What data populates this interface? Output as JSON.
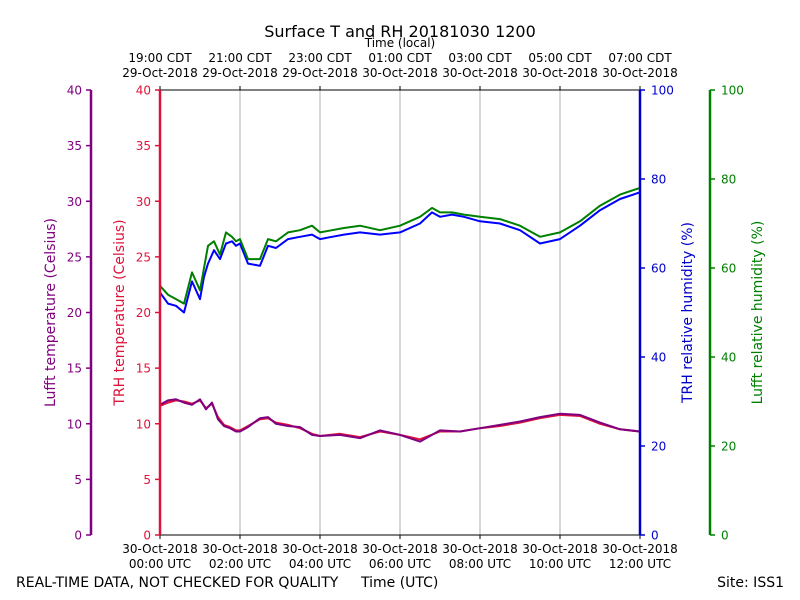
{
  "chart_data": {
    "type": "line",
    "title": "Surface T and RH 20181030 1200",
    "x_top_label": "Time (local)",
    "x_bottom_label": "Time (UTC)",
    "x_range_hours": [
      0,
      12
    ],
    "x_ticks": [
      {
        "h": 0,
        "utc": [
          "30-Oct-2018",
          "00:00 UTC"
        ],
        "local": [
          "19:00 CDT",
          "29-Oct-2018"
        ]
      },
      {
        "h": 2,
        "utc": [
          "30-Oct-2018",
          "02:00 UTC"
        ],
        "local": [
          "21:00 CDT",
          "29-Oct-2018"
        ]
      },
      {
        "h": 4,
        "utc": [
          "30-Oct-2018",
          "04:00 UTC"
        ],
        "local": [
          "23:00 CDT",
          "29-Oct-2018"
        ]
      },
      {
        "h": 6,
        "utc": [
          "30-Oct-2018",
          "06:00 UTC"
        ],
        "local": [
          "01:00 CDT",
          "30-Oct-2018"
        ]
      },
      {
        "h": 8,
        "utc": [
          "30-Oct-2018",
          "08:00 UTC"
        ],
        "local": [
          "03:00 CDT",
          "30-Oct-2018"
        ]
      },
      {
        "h": 10,
        "utc": [
          "30-Oct-2018",
          "10:00 UTC"
        ],
        "local": [
          "05:00 CDT",
          "30-Oct-2018"
        ]
      },
      {
        "h": 12,
        "utc": [
          "30-Oct-2018",
          "12:00 UTC"
        ],
        "local": [
          "07:00 CDT",
          "30-Oct-2018"
        ]
      }
    ],
    "axes": {
      "lufft_temp": {
        "label": "Lufft temperature (Celsius)",
        "ylim": [
          0,
          40
        ],
        "ticks": [
          0,
          5,
          10,
          15,
          20,
          25,
          30,
          35,
          40
        ],
        "color": "#800080"
      },
      "trh_temp": {
        "label": "TRH temperature (Celsius)",
        "ylim": [
          0,
          40
        ],
        "ticks": [
          0,
          5,
          10,
          15,
          20,
          25,
          30,
          35,
          40
        ],
        "color": "#dc143c"
      },
      "trh_rh": {
        "label": "TRH relative humidity (%)",
        "ylim": [
          0,
          100
        ],
        "ticks": [
          0,
          20,
          40,
          60,
          80,
          100
        ],
        "color": "#0000cd"
      },
      "lufft_rh": {
        "label": "Lufft relative humidity (%)",
        "ylim": [
          0,
          100
        ],
        "ticks": [
          0,
          20,
          40,
          60,
          80,
          100
        ],
        "color": "#008000"
      }
    },
    "grid": "vertical",
    "series": [
      {
        "key": "trh_temp",
        "color": "#dc143c",
        "x": [
          0,
          0.2,
          0.4,
          0.6,
          0.8,
          1.0,
          1.15,
          1.3,
          1.45,
          1.6,
          1.75,
          1.9,
          2.0,
          2.2,
          2.5,
          2.7,
          2.9,
          3.2,
          3.5,
          3.8,
          4.0,
          4.5,
          5.0,
          5.5,
          6.0,
          6.5,
          7.0,
          7.5,
          8.0,
          8.5,
          9.0,
          9.5,
          10.0,
          10.5,
          11.0,
          11.5,
          12.0
        ],
        "values": [
          11.6,
          11.9,
          12.1,
          12.0,
          11.8,
          12.1,
          11.4,
          11.8,
          10.6,
          9.9,
          9.7,
          9.4,
          9.4,
          9.8,
          10.4,
          10.5,
          10.1,
          9.9,
          9.6,
          9.1,
          8.9,
          9.1,
          8.8,
          9.3,
          9.0,
          8.6,
          9.3,
          9.3,
          9.6,
          9.8,
          10.1,
          10.5,
          10.8,
          10.7,
          10.0,
          9.5,
          9.3
        ]
      },
      {
        "key": "lufft_temp",
        "color": "#800080",
        "x": [
          0,
          0.2,
          0.4,
          0.6,
          0.8,
          1.0,
          1.15,
          1.3,
          1.45,
          1.6,
          1.75,
          1.9,
          2.0,
          2.2,
          2.5,
          2.7,
          2.9,
          3.2,
          3.5,
          3.8,
          4.0,
          4.5,
          5.0,
          5.5,
          6.0,
          6.5,
          7.0,
          7.5,
          8.0,
          8.5,
          9.0,
          9.5,
          10.0,
          10.5,
          11.0,
          11.5,
          12.0
        ],
        "values": [
          11.7,
          12.1,
          12.2,
          11.9,
          11.7,
          12.2,
          11.3,
          11.9,
          10.4,
          9.8,
          9.6,
          9.3,
          9.3,
          9.7,
          10.5,
          10.6,
          10.0,
          9.8,
          9.7,
          9.0,
          8.9,
          9.0,
          8.7,
          9.4,
          9.0,
          8.4,
          9.4,
          9.3,
          9.6,
          9.9,
          10.2,
          10.6,
          10.9,
          10.8,
          10.1,
          9.5,
          9.3
        ]
      },
      {
        "key": "trh_rh",
        "color": "#0000ff",
        "x": [
          0,
          0.2,
          0.4,
          0.6,
          0.8,
          1.0,
          1.1,
          1.2,
          1.35,
          1.5,
          1.65,
          1.8,
          1.9,
          2.0,
          2.2,
          2.5,
          2.7,
          2.9,
          3.2,
          3.5,
          3.8,
          4.0,
          4.3,
          4.6,
          5.0,
          5.5,
          6.0,
          6.5,
          6.8,
          7.0,
          7.3,
          7.6,
          8.0,
          8.5,
          9.0,
          9.5,
          10.0,
          10.5,
          11.0,
          11.5,
          12.0
        ],
        "values": [
          54.5,
          52.0,
          51.5,
          50.0,
          57.0,
          53.0,
          58.0,
          61.0,
          64.0,
          62.0,
          65.5,
          66.0,
          65.0,
          65.5,
          61.0,
          60.5,
          65.0,
          64.5,
          66.5,
          67.0,
          67.5,
          66.5,
          67.0,
          67.5,
          68.0,
          67.5,
          68.0,
          70.0,
          72.5,
          71.5,
          72.0,
          71.5,
          70.5,
          70.0,
          68.5,
          65.5,
          66.5,
          69.5,
          73.0,
          75.5,
          77.0
        ]
      },
      {
        "key": "lufft_rh",
        "color": "#008000",
        "x": [
          0,
          0.2,
          0.4,
          0.6,
          0.8,
          1.0,
          1.1,
          1.2,
          1.35,
          1.5,
          1.65,
          1.8,
          1.9,
          2.0,
          2.2,
          2.5,
          2.7,
          2.9,
          3.2,
          3.5,
          3.8,
          4.0,
          4.3,
          4.6,
          5.0,
          5.5,
          6.0,
          6.5,
          6.8,
          7.0,
          7.3,
          7.6,
          8.0,
          8.5,
          9.0,
          9.5,
          10.0,
          10.5,
          11.0,
          11.5,
          12.0
        ],
        "values": [
          56.0,
          54.0,
          53.0,
          52.0,
          59.0,
          55.0,
          60.0,
          65.0,
          66.0,
          63.0,
          68.0,
          67.0,
          66.0,
          66.5,
          62.0,
          62.0,
          66.5,
          66.0,
          68.0,
          68.5,
          69.5,
          68.0,
          68.5,
          69.0,
          69.5,
          68.5,
          69.5,
          71.5,
          73.5,
          72.5,
          72.5,
          72.0,
          71.5,
          71.0,
          69.5,
          67.0,
          68.0,
          70.5,
          74.0,
          76.5,
          78.0
        ]
      }
    ]
  },
  "footer": {
    "left": "REAL-TIME DATA, NOT CHECKED FOR QUALITY",
    "center": "Time (UTC)",
    "right": "Site: ISS1"
  }
}
